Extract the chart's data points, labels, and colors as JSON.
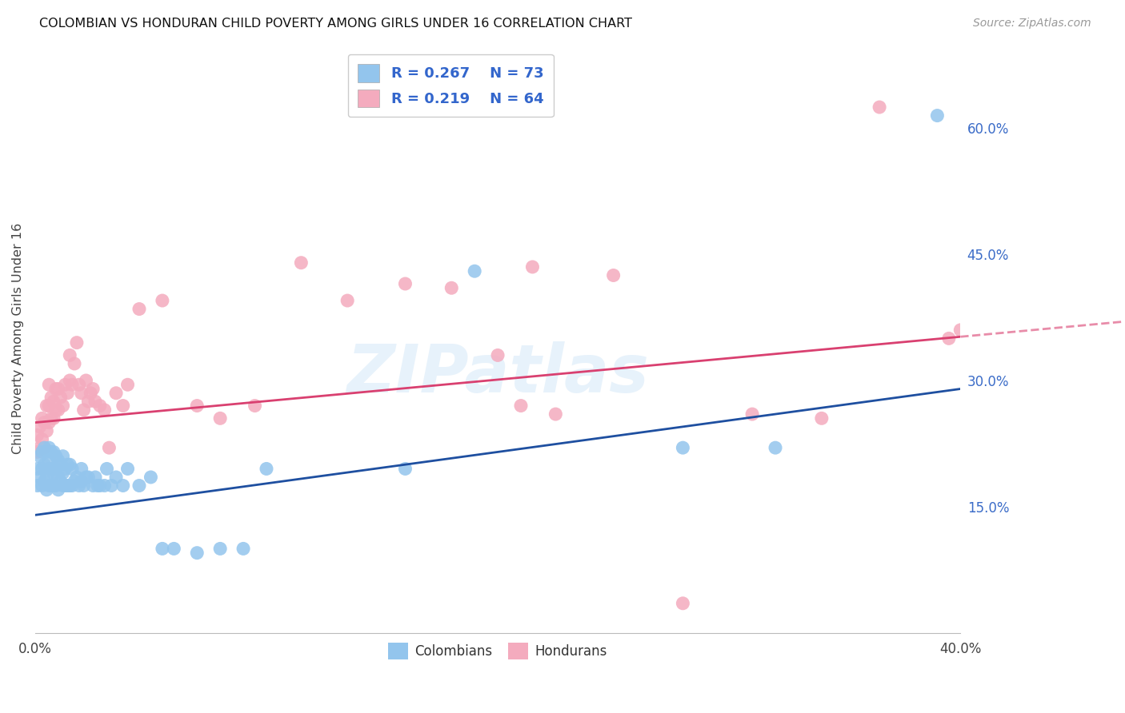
{
  "title": "COLOMBIAN VS HONDURAN CHILD POVERTY AMONG GIRLS UNDER 16 CORRELATION CHART",
  "source": "Source: ZipAtlas.com",
  "ylabel": "Child Poverty Among Girls Under 16",
  "xlim": [
    0.0,
    0.4
  ],
  "ylim": [
    0.0,
    0.7
  ],
  "xtick_positions": [
    0.0,
    0.08,
    0.16,
    0.24,
    0.32,
    0.4
  ],
  "xtick_labels": [
    "0.0%",
    "",
    "",
    "",
    "",
    "40.0%"
  ],
  "ytick_positions_right": [
    0.15,
    0.3,
    0.45,
    0.6
  ],
  "ytick_labels_right": [
    "15.0%",
    "30.0%",
    "45.0%",
    "60.0%"
  ],
  "blue_color": "#93C5ED",
  "pink_color": "#F4ABBE",
  "blue_line_color": "#1E4FA0",
  "pink_line_color": "#D94070",
  "blue_R": "0.267",
  "blue_N": "73",
  "pink_R": "0.219",
  "pink_N": "64",
  "watermark_text": "ZIPatlas",
  "legend_label_blue": "Colombians",
  "legend_label_pink": "Hondurans",
  "blue_scatter_x": [
    0.001,
    0.001,
    0.002,
    0.002,
    0.003,
    0.003,
    0.003,
    0.004,
    0.004,
    0.004,
    0.005,
    0.005,
    0.005,
    0.006,
    0.006,
    0.006,
    0.006,
    0.007,
    0.007,
    0.007,
    0.008,
    0.008,
    0.008,
    0.009,
    0.009,
    0.009,
    0.01,
    0.01,
    0.01,
    0.011,
    0.011,
    0.012,
    0.012,
    0.012,
    0.013,
    0.013,
    0.014,
    0.014,
    0.015,
    0.015,
    0.016,
    0.016,
    0.017,
    0.018,
    0.019,
    0.02,
    0.02,
    0.021,
    0.022,
    0.023,
    0.025,
    0.026,
    0.027,
    0.028,
    0.03,
    0.031,
    0.033,
    0.035,
    0.038,
    0.04,
    0.045,
    0.05,
    0.055,
    0.06,
    0.07,
    0.08,
    0.09,
    0.1,
    0.16,
    0.19,
    0.28,
    0.32,
    0.39
  ],
  "blue_scatter_y": [
    0.175,
    0.195,
    0.185,
    0.21,
    0.175,
    0.195,
    0.215,
    0.18,
    0.2,
    0.22,
    0.17,
    0.185,
    0.215,
    0.175,
    0.195,
    0.205,
    0.22,
    0.175,
    0.195,
    0.215,
    0.175,
    0.19,
    0.215,
    0.175,
    0.195,
    0.21,
    0.17,
    0.185,
    0.205,
    0.18,
    0.2,
    0.175,
    0.19,
    0.21,
    0.175,
    0.195,
    0.175,
    0.2,
    0.175,
    0.2,
    0.175,
    0.195,
    0.18,
    0.185,
    0.175,
    0.18,
    0.195,
    0.175,
    0.185,
    0.185,
    0.175,
    0.185,
    0.175,
    0.175,
    0.175,
    0.195,
    0.175,
    0.185,
    0.175,
    0.195,
    0.175,
    0.185,
    0.1,
    0.1,
    0.095,
    0.1,
    0.1,
    0.195,
    0.195,
    0.43,
    0.22,
    0.22,
    0.615
  ],
  "pink_scatter_x": [
    0.001,
    0.001,
    0.002,
    0.002,
    0.003,
    0.003,
    0.004,
    0.004,
    0.005,
    0.005,
    0.006,
    0.006,
    0.006,
    0.007,
    0.007,
    0.008,
    0.008,
    0.009,
    0.009,
    0.01,
    0.01,
    0.011,
    0.012,
    0.013,
    0.014,
    0.015,
    0.015,
    0.016,
    0.017,
    0.018,
    0.019,
    0.02,
    0.021,
    0.022,
    0.023,
    0.024,
    0.025,
    0.026,
    0.028,
    0.03,
    0.032,
    0.035,
    0.038,
    0.04,
    0.045,
    0.055,
    0.07,
    0.08,
    0.095,
    0.115,
    0.135,
    0.16,
    0.18,
    0.2,
    0.21,
    0.215,
    0.225,
    0.25,
    0.28,
    0.31,
    0.34,
    0.365,
    0.395,
    0.4
  ],
  "pink_scatter_y": [
    0.215,
    0.235,
    0.22,
    0.245,
    0.23,
    0.255,
    0.22,
    0.25,
    0.24,
    0.27,
    0.25,
    0.27,
    0.295,
    0.255,
    0.28,
    0.255,
    0.275,
    0.265,
    0.29,
    0.265,
    0.29,
    0.28,
    0.27,
    0.295,
    0.285,
    0.3,
    0.33,
    0.295,
    0.32,
    0.345,
    0.295,
    0.285,
    0.265,
    0.3,
    0.275,
    0.285,
    0.29,
    0.275,
    0.27,
    0.265,
    0.22,
    0.285,
    0.27,
    0.295,
    0.385,
    0.395,
    0.27,
    0.255,
    0.27,
    0.44,
    0.395,
    0.415,
    0.41,
    0.33,
    0.27,
    0.435,
    0.26,
    0.425,
    0.035,
    0.26,
    0.255,
    0.625,
    0.35,
    0.36
  ]
}
